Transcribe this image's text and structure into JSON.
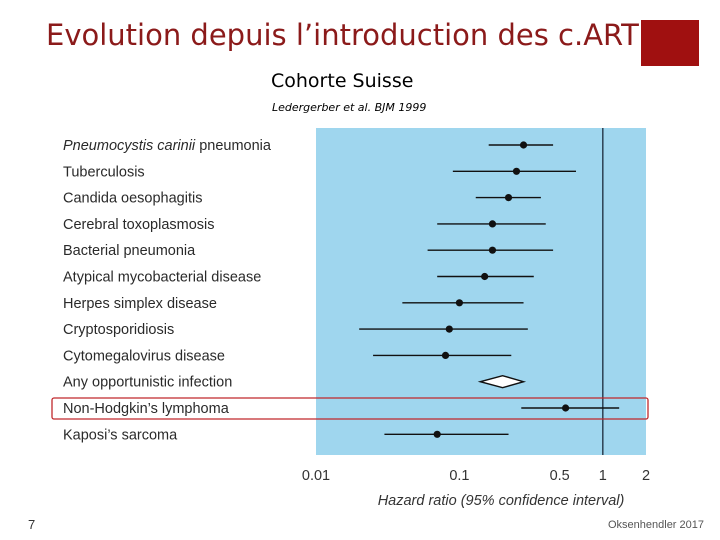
{
  "slide": {
    "title": "Evolution depuis l’introduction des c.ART",
    "subtitle": "Cohorte Suisse",
    "citation": "Ledergerber et al. BJM 1999",
    "number": "7",
    "credit": "Oksenhendler 2017",
    "accent_color": "#a01010",
    "title_color": "#8b1a1a"
  },
  "chart_data": {
    "type": "forest",
    "xlabel": "Hazard ratio (95% confidence interval)",
    "xscale": "log",
    "xlim": [
      0.01,
      2
    ],
    "xticks": [
      "0.01",
      "0.1",
      "0.5",
      "1",
      "2"
    ],
    "xtick_values": [
      0.01,
      0.1,
      0.5,
      1,
      2
    ],
    "reference_line": 1,
    "background_color": "#9fd6ee",
    "highlighted": "Non-Hodgkin’s lymphoma",
    "highlight_color": "#c0282c",
    "rows": [
      {
        "label": "Pneumocystis carinii pneumonia",
        "italic_part": "Pneumocystis carinii",
        "hr": 0.28,
        "lo": 0.16,
        "hi": 0.45
      },
      {
        "label": "Tuberculosis",
        "hr": 0.25,
        "lo": 0.09,
        "hi": 0.65
      },
      {
        "label": "Candida oesophagitis",
        "hr": 0.22,
        "lo": 0.13,
        "hi": 0.37
      },
      {
        "label": "Cerebral toxoplasmosis",
        "hr": 0.17,
        "lo": 0.07,
        "hi": 0.4
      },
      {
        "label": "Bacterial pneumonia",
        "hr": 0.17,
        "lo": 0.06,
        "hi": 0.45
      },
      {
        "label": "Atypical mycobacterial disease",
        "hr": 0.15,
        "lo": 0.07,
        "hi": 0.33
      },
      {
        "label": "Herpes simplex disease",
        "hr": 0.1,
        "lo": 0.04,
        "hi": 0.28
      },
      {
        "label": "Cryptosporidiosis",
        "hr": 0.085,
        "lo": 0.02,
        "hi": 0.3
      },
      {
        "label": "Cytomegalovirus disease",
        "hr": 0.08,
        "lo": 0.025,
        "hi": 0.23
      },
      {
        "label": "Any opportunistic infection",
        "hr": 0.2,
        "lo": 0.14,
        "hi": 0.28,
        "diamond": true
      },
      {
        "label": "Non-Hodgkin’s lymphoma",
        "hr": 0.55,
        "lo": 0.27,
        "hi": 1.3
      },
      {
        "label": "Kaposi’s sarcoma",
        "hr": 0.07,
        "lo": 0.03,
        "hi": 0.22
      }
    ]
  }
}
